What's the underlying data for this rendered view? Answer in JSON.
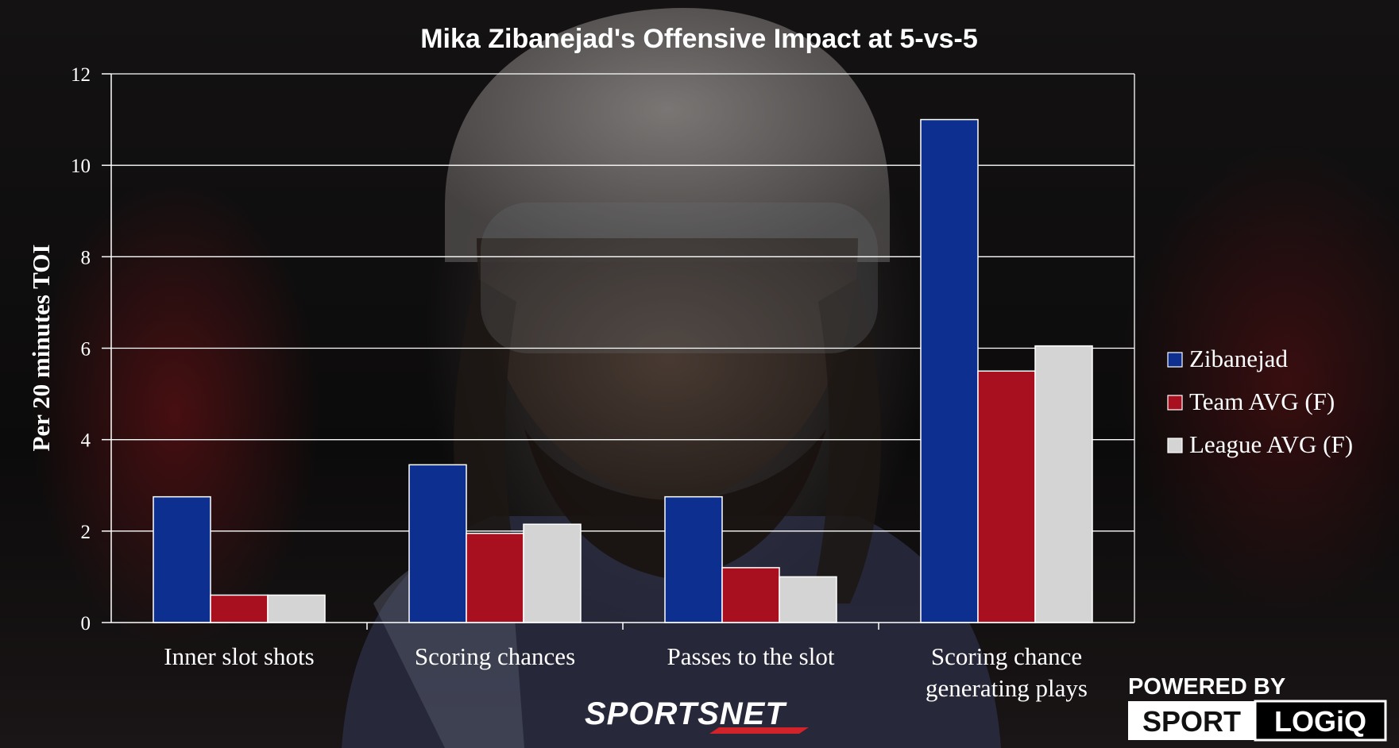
{
  "chart_data": {
    "type": "bar",
    "title": "Mika Zibanejad's Offensive Impact at 5-vs-5",
    "ylabel": "Per 20 minutes TOI",
    "xlabel": "",
    "ylim": [
      0,
      12
    ],
    "yticks": [
      0,
      2,
      4,
      6,
      8,
      10,
      12
    ],
    "grid": true,
    "legend_position": "right",
    "categories": [
      [
        "Inner slot shots"
      ],
      [
        "Scoring chances"
      ],
      [
        "Passes to the slot"
      ],
      [
        "Scoring chance",
        "generating plays"
      ]
    ],
    "series": [
      {
        "name": "Zibanejad",
        "color": "#0d2f8f",
        "values": [
          2.75,
          3.45,
          2.75,
          11.0
        ]
      },
      {
        "name": "Team AVG (F)",
        "color": "#a8101f",
        "values": [
          0.6,
          1.95,
          1.2,
          5.5
        ]
      },
      {
        "name": "League AVG (F)",
        "color": "#d4d4d4",
        "values": [
          0.6,
          2.15,
          1.0,
          6.05
        ]
      }
    ]
  },
  "logos": {
    "sportsnet": "SPORTSNET",
    "powered_by": "POWERED BY",
    "sport": "SPORT",
    "logiq": "LOGiQ"
  },
  "colors": {
    "grid": "#ffffff",
    "axis": "#ffffff",
    "text": "#ffffff"
  }
}
